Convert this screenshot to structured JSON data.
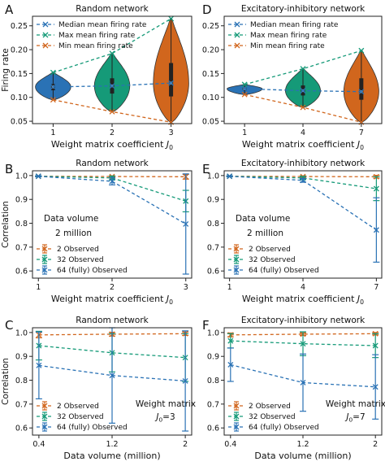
{
  "colors": {
    "blue": "#2a72b5",
    "green": "#159a78",
    "orange": "#d1661d"
  },
  "chart_data": [
    {
      "panel": "A",
      "type": "violin",
      "title": "Random network",
      "xlabel": "Weight matrix coefficient J0",
      "ylabel": "Firing rate",
      "categories": [
        "1",
        "2",
        "3"
      ],
      "x": [
        1,
        2,
        3
      ],
      "xlim": [
        0.65,
        3.35
      ],
      "ylim": [
        0.045,
        0.27
      ],
      "yticks": [
        0.05,
        0.1,
        0.15,
        0.2,
        0.25
      ],
      "ytick_labels": [
        "0.05",
        "0.10",
        "0.15",
        "0.20",
        "0.25"
      ],
      "violins": [
        {
          "x": 1,
          "min": 0.095,
          "max": 0.152,
          "median": 0.122,
          "q1": 0.115,
          "q3": 0.128,
          "color": "blue"
        },
        {
          "x": 2,
          "min": 0.07,
          "max": 0.192,
          "median": 0.124,
          "q1": 0.108,
          "q3": 0.14,
          "color": "green"
        },
        {
          "x": 3,
          "min": 0.048,
          "max": 0.265,
          "median": 0.13,
          "q1": 0.102,
          "q3": 0.172,
          "color": "orange"
        }
      ],
      "series": [
        {
          "name": "Median mean firing rate",
          "values": [
            0.122,
            0.124,
            0.13
          ],
          "color": "blue"
        },
        {
          "name": "Max mean firing rate",
          "values": [
            0.152,
            0.192,
            0.265
          ],
          "color": "green"
        },
        {
          "name": "Min mean firing rate",
          "values": [
            0.095,
            0.07,
            0.048
          ],
          "color": "orange"
        }
      ],
      "legend": "top-left",
      "grid": false
    },
    {
      "panel": "D",
      "type": "violin",
      "title": "Excitatory-inhibitory network",
      "xlabel": "Weight matrix coefficient J0",
      "ylabel": "",
      "categories": [
        "1",
        "4",
        "7"
      ],
      "x": [
        1,
        4,
        7
      ],
      "xlim": [
        -0.05,
        8.05
      ],
      "ylim": [
        0.045,
        0.27
      ],
      "yticks": [
        0.05,
        0.1,
        0.15,
        0.2,
        0.25
      ],
      "ytick_labels": [
        "0.05",
        "0.10",
        "0.15",
        "0.20",
        "0.25"
      ],
      "violins": [
        {
          "x": 1,
          "min": 0.106,
          "max": 0.127,
          "median": 0.118,
          "q1": 0.114,
          "q3": 0.121,
          "color": "blue"
        },
        {
          "x": 4,
          "min": 0.079,
          "max": 0.16,
          "median": 0.114,
          "q1": 0.104,
          "q3": 0.125,
          "color": "green"
        },
        {
          "x": 7,
          "min": 0.048,
          "max": 0.198,
          "median": 0.112,
          "q1": 0.095,
          "q3": 0.14,
          "color": "orange"
        }
      ],
      "series": [
        {
          "name": "Median mean firing rate",
          "values": [
            0.118,
            0.114,
            0.112
          ],
          "color": "blue"
        },
        {
          "name": "Max mean firing rate",
          "values": [
            0.127,
            0.16,
            0.198
          ],
          "color": "green"
        },
        {
          "name": "Min mean firing rate",
          "values": [
            0.106,
            0.079,
            0.048
          ],
          "color": "orange"
        }
      ],
      "legend": "top-left",
      "grid": false
    },
    {
      "panel": "B",
      "type": "line",
      "title": "Random network",
      "xlabel": "Weight matrix coefficient J0",
      "ylabel": "Correlation",
      "categories": [
        "1",
        "2",
        "3"
      ],
      "x": [
        1,
        2,
        3
      ],
      "xlim": [
        0.92,
        3.08
      ],
      "ylim": [
        0.57,
        1.02
      ],
      "yticks": [
        0.6,
        0.7,
        0.8,
        0.9,
        1.0
      ],
      "ytick_labels": [
        "0.6",
        "0.7",
        "0.8",
        "0.9",
        "1.0"
      ],
      "annotation_lines": [
        "Data volume",
        "2 million"
      ],
      "series": [
        {
          "name": "2 Observed",
          "values": [
            0.997,
            0.996,
            0.995
          ],
          "err": [
            0.002,
            0.003,
            0.01
          ],
          "color": "orange"
        },
        {
          "name": "32 Observed",
          "values": [
            0.997,
            0.99,
            0.893
          ],
          "err": [
            0.002,
            0.008,
            0.045
          ],
          "color": "green"
        },
        {
          "name": "64 (fully) Observed",
          "values": [
            0.997,
            0.976,
            0.797
          ],
          "err": [
            0.002,
            0.015,
            0.21
          ],
          "color": "blue"
        }
      ],
      "legend": "bottom-left",
      "grid": false
    },
    {
      "panel": "E",
      "type": "line",
      "title": "Excitatory-inhibitory network",
      "xlabel": "Weight matrix coefficient J0",
      "ylabel": "",
      "categories": [
        "1",
        "4",
        "7"
      ],
      "x": [
        1,
        4,
        7
      ],
      "xlim": [
        0.78,
        7.22
      ],
      "ylim": [
        0.57,
        1.02
      ],
      "yticks": [
        0.6,
        0.7,
        0.8,
        0.9,
        1.0
      ],
      "ytick_labels": [
        "0.6",
        "0.7",
        "0.8",
        "0.9",
        "1.0"
      ],
      "annotation_lines": [
        "Data volume",
        "2 million"
      ],
      "series": [
        {
          "name": "2 Observed",
          "values": [
            0.997,
            0.996,
            0.995
          ],
          "err": [
            0.002,
            0.003,
            0.006
          ],
          "color": "orange"
        },
        {
          "name": "32 Observed",
          "values": [
            0.997,
            0.99,
            0.945
          ],
          "err": [
            0.002,
            0.006,
            0.05
          ],
          "color": "green"
        },
        {
          "name": "64 (fully) Observed",
          "values": [
            0.997,
            0.98,
            0.772
          ],
          "err": [
            0.002,
            0.008,
            0.135
          ],
          "color": "blue"
        }
      ],
      "legend": "bottom-left",
      "grid": false
    },
    {
      "panel": "C",
      "type": "line",
      "title": "Random network",
      "xlabel": "Data volume (million)",
      "ylabel": "Correlation",
      "categories": [
        "0.4",
        "1.2",
        "2"
      ],
      "x": [
        0.4,
        1.2,
        2
      ],
      "xlim": [
        0.33,
        2.07
      ],
      "ylim": [
        0.57,
        1.02
      ],
      "yticks": [
        0.6,
        0.7,
        0.8,
        0.9,
        1.0
      ],
      "ytick_labels": [
        "0.6",
        "0.7",
        "0.8",
        "0.9",
        "1.0"
      ],
      "annotation_lines": [
        "Weight matrix",
        "J0=3"
      ],
      "series": [
        {
          "name": "2 Observed",
          "values": [
            0.99,
            0.993,
            0.995
          ],
          "err": [
            0.012,
            0.008,
            0.007
          ],
          "color": "orange"
        },
        {
          "name": "32 Observed",
          "values": [
            0.945,
            0.915,
            0.895
          ],
          "err": [
            0.06,
            0.08,
            0.1
          ],
          "color": "green"
        },
        {
          "name": "64 (fully) Observed",
          "values": [
            0.862,
            0.82,
            0.797
          ],
          "err": [
            0.14,
            0.2,
            0.21
          ],
          "color": "blue"
        }
      ],
      "legend": "bottom-left",
      "grid": false
    },
    {
      "panel": "F",
      "type": "line",
      "title": "Excitatory-inhibitory network",
      "xlabel": "Data volume (million)",
      "ylabel": "",
      "categories": [
        "0.4",
        "1.2",
        "2"
      ],
      "x": [
        0.4,
        1.2,
        2
      ],
      "xlim": [
        0.33,
        2.07
      ],
      "ylim": [
        0.57,
        1.02
      ],
      "yticks": [
        0.6,
        0.7,
        0.8,
        0.9,
        1.0
      ],
      "ytick_labels": [
        "0.6",
        "0.7",
        "0.8",
        "0.9",
        "1.0"
      ],
      "annotation_lines": [
        "Weight matrix",
        "J0=7"
      ],
      "series": [
        {
          "name": "2 Observed",
          "values": [
            0.99,
            0.993,
            0.995
          ],
          "err": [
            0.008,
            0.005,
            0.005
          ],
          "color": "orange"
        },
        {
          "name": "32 Observed",
          "values": [
            0.965,
            0.953,
            0.945
          ],
          "err": [
            0.03,
            0.05,
            0.05
          ],
          "color": "green"
        },
        {
          "name": "64 (fully) Observed",
          "values": [
            0.865,
            0.79,
            0.772
          ],
          "err": [
            0.07,
            0.12,
            0.135
          ],
          "color": "blue"
        }
      ],
      "legend": "bottom-left",
      "grid": false
    }
  ]
}
